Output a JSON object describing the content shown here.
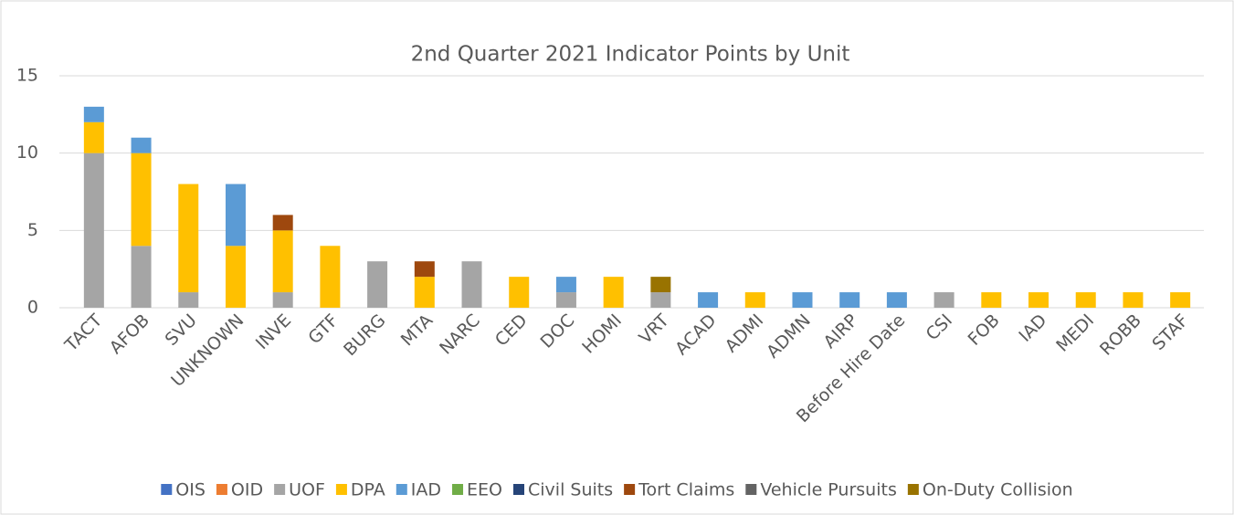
{
  "chart_data": {
    "type": "stacked_bar",
    "title": "2nd Quarter 2021 Indicator Points by Unit",
    "categories": [
      "TACT",
      "AFOB",
      "SVU",
      "UNKNOWN",
      "INVE",
      "GTF",
      "BURG",
      "MTA",
      "NARC",
      "CED",
      "DOC",
      "HOMI",
      "VRT",
      "ACAD",
      "ADMI",
      "ADMN",
      "AIRP",
      "Before Hire Date",
      "CSI",
      "FOB",
      "IAD",
      "MEDI",
      "ROBB",
      "STAF"
    ],
    "series": [
      {
        "name": "OIS",
        "color": "#4472c4",
        "values": [
          0,
          0,
          0,
          0,
          0,
          0,
          0,
          0,
          0,
          0,
          0,
          0,
          0,
          0,
          0,
          0,
          0,
          0,
          0,
          0,
          0,
          0,
          0,
          0
        ]
      },
      {
        "name": "OID",
        "color": "#ed7d31",
        "values": [
          0,
          0,
          0,
          0,
          0,
          0,
          0,
          0,
          0,
          0,
          0,
          0,
          0,
          0,
          0,
          0,
          0,
          0,
          0,
          0,
          0,
          0,
          0,
          0
        ]
      },
      {
        "name": "UOF",
        "color": "#a5a5a5",
        "values": [
          10,
          4,
          1,
          0,
          1,
          0,
          3,
          0,
          3,
          0,
          1,
          0,
          1,
          0,
          0,
          0,
          0,
          0,
          1,
          0,
          0,
          0,
          0,
          0
        ]
      },
      {
        "name": "DPA",
        "color": "#ffc000",
        "values": [
          2,
          6,
          7,
          4,
          4,
          4,
          0,
          2,
          0,
          2,
          0,
          2,
          0,
          0,
          1,
          0,
          0,
          0,
          0,
          1,
          1,
          1,
          1,
          1
        ]
      },
      {
        "name": "IAD",
        "color": "#5b9bd5",
        "values": [
          1,
          1,
          0,
          4,
          0,
          0,
          0,
          0,
          0,
          0,
          1,
          0,
          0,
          1,
          0,
          1,
          1,
          1,
          0,
          0,
          0,
          0,
          0,
          0
        ]
      },
      {
        "name": "EEO",
        "color": "#70ad47",
        "values": [
          0,
          0,
          0,
          0,
          0,
          0,
          0,
          0,
          0,
          0,
          0,
          0,
          0,
          0,
          0,
          0,
          0,
          0,
          0,
          0,
          0,
          0,
          0,
          0
        ]
      },
      {
        "name": "Civil Suits",
        "color": "#264478",
        "values": [
          0,
          0,
          0,
          0,
          0,
          0,
          0,
          0,
          0,
          0,
          0,
          0,
          0,
          0,
          0,
          0,
          0,
          0,
          0,
          0,
          0,
          0,
          0,
          0
        ]
      },
      {
        "name": "Tort Claims",
        "color": "#9e480e",
        "values": [
          0,
          0,
          0,
          0,
          1,
          0,
          0,
          1,
          0,
          0,
          0,
          0,
          0,
          0,
          0,
          0,
          0,
          0,
          0,
          0,
          0,
          0,
          0,
          0
        ]
      },
      {
        "name": "Vehicle Pursuits",
        "color": "#636363",
        "values": [
          0,
          0,
          0,
          0,
          0,
          0,
          0,
          0,
          0,
          0,
          0,
          0,
          0,
          0,
          0,
          0,
          0,
          0,
          0,
          0,
          0,
          0,
          0,
          0
        ]
      },
      {
        "name": "On-Duty Collision",
        "color": "#997300",
        "values": [
          0,
          0,
          0,
          0,
          0,
          0,
          0,
          0,
          0,
          0,
          0,
          0,
          1,
          0,
          0,
          0,
          0,
          0,
          0,
          0,
          0,
          0,
          0,
          0
        ]
      }
    ],
    "ylim": [
      0,
      15
    ],
    "yticks": [
      0,
      5,
      10,
      15
    ],
    "grid": true,
    "legend": "bottom"
  }
}
